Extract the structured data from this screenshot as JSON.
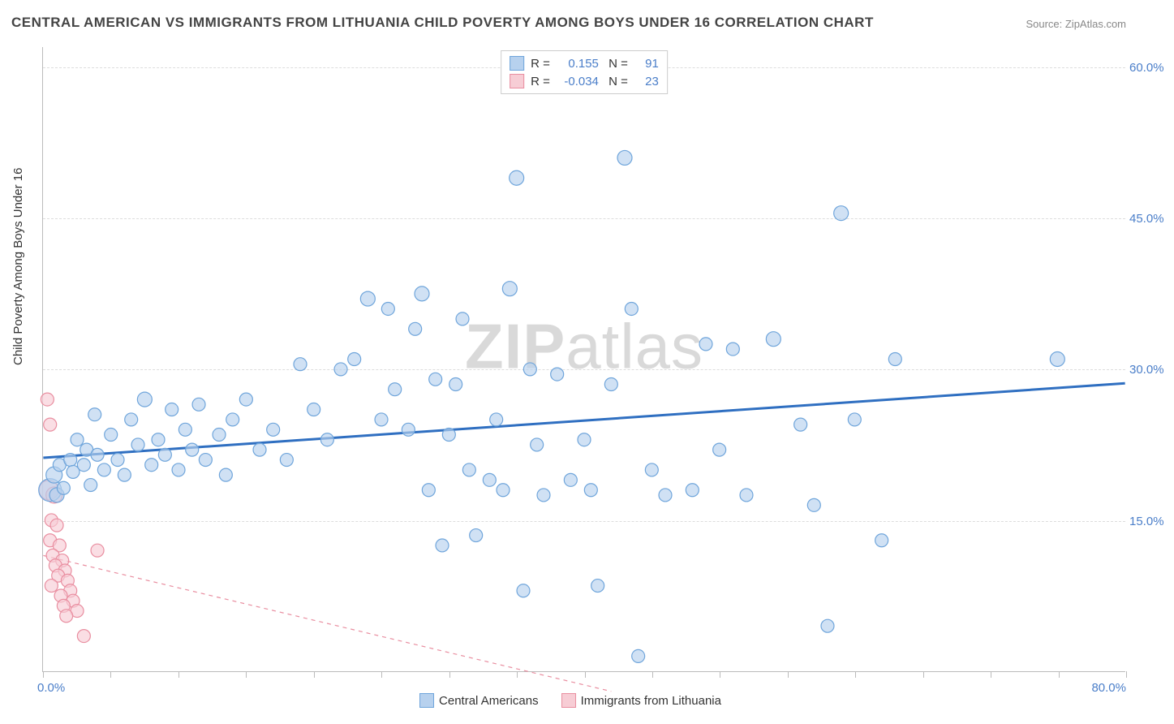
{
  "title": "CENTRAL AMERICAN VS IMMIGRANTS FROM LITHUANIA CHILD POVERTY AMONG BOYS UNDER 16 CORRELATION CHART",
  "source": "Source: ZipAtlas.com",
  "y_axis_title": "Child Poverty Among Boys Under 16",
  "watermark_bold": "ZIP",
  "watermark_rest": "atlas",
  "x_min_label": "0.0%",
  "x_max_label": "80.0%",
  "chart": {
    "type": "scatter",
    "background_color": "#ffffff",
    "grid_color": "#dddddd",
    "axis_color": "#bbbbbb",
    "xlim": [
      0,
      80
    ],
    "ylim": [
      0,
      62
    ],
    "y_ticks": [
      15,
      30,
      45,
      60
    ],
    "y_tick_labels": [
      "15.0%",
      "30.0%",
      "45.0%",
      "60.0%"
    ],
    "x_ticks": [
      0,
      5,
      10,
      15,
      20,
      25,
      30,
      35,
      40,
      45,
      50,
      55,
      60,
      65,
      70,
      75,
      80
    ],
    "series": [
      {
        "name": "Central Americans",
        "color_fill": "#b7d1ee",
        "color_stroke": "#6fa5db",
        "trend_color": "#2f6fc1",
        "trend_style": "solid",
        "trend_width": 3,
        "R": "0.155",
        "N": "91",
        "trend_line": {
          "x1": 0,
          "y1": 21.2,
          "x2": 80,
          "y2": 28.6
        },
        "points": [
          [
            0.5,
            18,
            14
          ],
          [
            0.8,
            19.5,
            10
          ],
          [
            1,
            17.5,
            9
          ],
          [
            1.2,
            20.5,
            8
          ],
          [
            1.5,
            18.2,
            8
          ],
          [
            2,
            21,
            8
          ],
          [
            2.2,
            19.8,
            8
          ],
          [
            2.5,
            23,
            8
          ],
          [
            3,
            20.5,
            8
          ],
          [
            3.2,
            22,
            8
          ],
          [
            3.5,
            18.5,
            8
          ],
          [
            3.8,
            25.5,
            8
          ],
          [
            4,
            21.5,
            8
          ],
          [
            4.5,
            20,
            8
          ],
          [
            5,
            23.5,
            8
          ],
          [
            5.5,
            21,
            8
          ],
          [
            6,
            19.5,
            8
          ],
          [
            6.5,
            25,
            8
          ],
          [
            7,
            22.5,
            8
          ],
          [
            7.5,
            27,
            9
          ],
          [
            8,
            20.5,
            8
          ],
          [
            8.5,
            23,
            8
          ],
          [
            9,
            21.5,
            8
          ],
          [
            9.5,
            26,
            8
          ],
          [
            10,
            20,
            8
          ],
          [
            10.5,
            24,
            8
          ],
          [
            11,
            22,
            8
          ],
          [
            11.5,
            26.5,
            8
          ],
          [
            12,
            21,
            8
          ],
          [
            13,
            23.5,
            8
          ],
          [
            13.5,
            19.5,
            8
          ],
          [
            14,
            25,
            8
          ],
          [
            15,
            27,
            8
          ],
          [
            16,
            22,
            8
          ],
          [
            17,
            24,
            8
          ],
          [
            18,
            21,
            8
          ],
          [
            19,
            30.5,
            8
          ],
          [
            20,
            26,
            8
          ],
          [
            21,
            23,
            8
          ],
          [
            22,
            30,
            8
          ],
          [
            23,
            31,
            8
          ],
          [
            24,
            37,
            9
          ],
          [
            25,
            25,
            8
          ],
          [
            25.5,
            36,
            8
          ],
          [
            26,
            28,
            8
          ],
          [
            27,
            24,
            8
          ],
          [
            27.5,
            34,
            8
          ],
          [
            28,
            37.5,
            9
          ],
          [
            28.5,
            18,
            8
          ],
          [
            29,
            29,
            8
          ],
          [
            29.5,
            12.5,
            8
          ],
          [
            30,
            23.5,
            8
          ],
          [
            30.5,
            28.5,
            8
          ],
          [
            31,
            35,
            8
          ],
          [
            31.5,
            20,
            8
          ],
          [
            32,
            13.5,
            8
          ],
          [
            33,
            19,
            8
          ],
          [
            33.5,
            25,
            8
          ],
          [
            34,
            18,
            8
          ],
          [
            34.5,
            38,
            9
          ],
          [
            35,
            49,
            9
          ],
          [
            35.5,
            8,
            8
          ],
          [
            36,
            30,
            8
          ],
          [
            36.5,
            22.5,
            8
          ],
          [
            37,
            17.5,
            8
          ],
          [
            38,
            29.5,
            8
          ],
          [
            39,
            19,
            8
          ],
          [
            40,
            23,
            8
          ],
          [
            40.5,
            18,
            8
          ],
          [
            41,
            8.5,
            8
          ],
          [
            42,
            28.5,
            8
          ],
          [
            43,
            51,
            9
          ],
          [
            43.5,
            36,
            8
          ],
          [
            44,
            1.5,
            8
          ],
          [
            45,
            20,
            8
          ],
          [
            46,
            17.5,
            8
          ],
          [
            48,
            18,
            8
          ],
          [
            49,
            32.5,
            8
          ],
          [
            50,
            22,
            8
          ],
          [
            51,
            32,
            8
          ],
          [
            52,
            17.5,
            8
          ],
          [
            54,
            33,
            9
          ],
          [
            56,
            24.5,
            8
          ],
          [
            57,
            16.5,
            8
          ],
          [
            58,
            4.5,
            8
          ],
          [
            59,
            45.5,
            9
          ],
          [
            60,
            25,
            8
          ],
          [
            62,
            13,
            8
          ],
          [
            63,
            31,
            8
          ],
          [
            75,
            31,
            9
          ]
        ]
      },
      {
        "name": "Immigrants from Lithuania",
        "color_fill": "#f7cdd5",
        "color_stroke": "#e98ea0",
        "trend_color": "#e98ea0",
        "trend_style": "dashed",
        "trend_width": 1.2,
        "R": "-0.034",
        "N": "23",
        "trend_line": {
          "x1": 0,
          "y1": 11.5,
          "x2": 42,
          "y2": -2
        },
        "points": [
          [
            0.3,
            27,
            8
          ],
          [
            0.5,
            24.5,
            8
          ],
          [
            0.4,
            18,
            12
          ],
          [
            0.8,
            17.5,
            10
          ],
          [
            0.6,
            15,
            8
          ],
          [
            1,
            14.5,
            8
          ],
          [
            0.5,
            13,
            8
          ],
          [
            1.2,
            12.5,
            8
          ],
          [
            0.7,
            11.5,
            8
          ],
          [
            1.4,
            11,
            8
          ],
          [
            0.9,
            10.5,
            8
          ],
          [
            1.6,
            10,
            8
          ],
          [
            1.1,
            9.5,
            8
          ],
          [
            1.8,
            9,
            8
          ],
          [
            0.6,
            8.5,
            8
          ],
          [
            2,
            8,
            8
          ],
          [
            1.3,
            7.5,
            8
          ],
          [
            2.2,
            7,
            8
          ],
          [
            1.5,
            6.5,
            8
          ],
          [
            2.5,
            6,
            8
          ],
          [
            1.7,
            5.5,
            8
          ],
          [
            3,
            3.5,
            8
          ],
          [
            4,
            12,
            8
          ]
        ]
      }
    ]
  },
  "legend": {
    "series1": "Central Americans",
    "series2": "Immigrants from Lithuania"
  }
}
